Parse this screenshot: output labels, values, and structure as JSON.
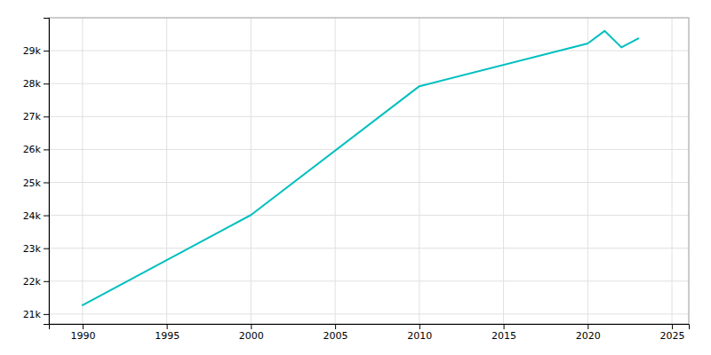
{
  "chart_data": {
    "type": "line",
    "x": [
      1990,
      2000,
      2010,
      2020,
      2021,
      2022,
      2023
    ],
    "values": [
      21270,
      24009,
      27920,
      29220,
      29600,
      29100,
      29370
    ],
    "color": "#00BFBF",
    "xlim": [
      1988,
      2026
    ],
    "ylim": [
      20700,
      30000
    ],
    "xticks": [
      1990,
      1995,
      2000,
      2005,
      2010,
      2015,
      2020,
      2025
    ],
    "yticks": [
      {
        "value": 21000,
        "label": "21k"
      },
      {
        "value": 22000,
        "label": "22k"
      },
      {
        "value": 23000,
        "label": "23k"
      },
      {
        "value": 24000,
        "label": "24k"
      },
      {
        "value": 25000,
        "label": "25k"
      },
      {
        "value": 26000,
        "label": "26k"
      },
      {
        "value": 27000,
        "label": "27k"
      },
      {
        "value": 28000,
        "label": "28k"
      },
      {
        "value": 29000,
        "label": "29k"
      }
    ],
    "grid": true
  }
}
